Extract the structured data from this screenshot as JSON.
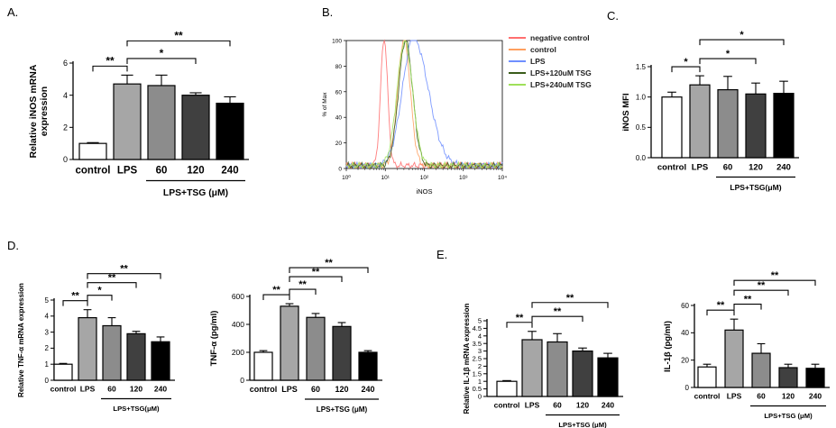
{
  "panel_labels": [
    "A.",
    "B.",
    "C.",
    "D.",
    "E."
  ],
  "colors": {
    "control": "#ffffff",
    "LPS": "#a6a6a6",
    "60": "#8c8c8c",
    "120": "#404040",
    "240": "#000000",
    "negative_control": "#ff6f6f",
    "flow_control": "#ff9f5f",
    "flow_LPS": "#6f8fff",
    "flow_120": "#3a5c1a",
    "flow_240": "#9fe05a"
  },
  "chart_data": [
    {
      "id": "A",
      "type": "bar",
      "ylabel": "Relative iNOS mRNA\nexpression",
      "ylim": [
        0,
        6
      ],
      "yticks": [
        0,
        2,
        4,
        6
      ],
      "categories": [
        "control",
        "LPS",
        "60",
        "120",
        "240"
      ],
      "values": [
        1.0,
        4.7,
        4.6,
        4.0,
        3.5
      ],
      "errors": [
        0.05,
        0.55,
        0.65,
        0.15,
        0.4
      ],
      "group_label": "LPS+TSG (μM)",
      "brackets": [
        {
          "from": 0,
          "to": 1,
          "label": "**"
        },
        {
          "from": 1,
          "to": 3,
          "label": "*"
        },
        {
          "from": 1,
          "to": 4,
          "label": "**"
        }
      ]
    },
    {
      "id": "B",
      "type": "line",
      "xlabel": "iNOS",
      "ylabel": "% of Max",
      "xscale": "log",
      "xlim": [
        1,
        10000
      ],
      "ylim": [
        0,
        100
      ],
      "yticks": [
        0,
        20,
        40,
        60,
        80,
        100
      ],
      "xticks": [
        "10⁰",
        "10¹",
        "10²",
        "10³",
        "10⁴"
      ],
      "series": [
        {
          "name": "negative control",
          "color_key": "negative_control",
          "center_log": 0.97,
          "sigma": 0.09,
          "peak": 100
        },
        {
          "name": "control",
          "color_key": "flow_control",
          "center_log": 1.48,
          "sigma": 0.16,
          "peak": 99
        },
        {
          "name": "LPS",
          "color_key": "flow_LPS",
          "center_log": 1.72,
          "sigma": 0.28,
          "peak": 100
        },
        {
          "name": "LPS+120uM TSG",
          "color_key": "flow_120",
          "center_log": 1.52,
          "sigma": 0.18,
          "peak": 98
        },
        {
          "name": "LPS+240uM TSG",
          "color_key": "flow_240",
          "center_log": 1.5,
          "sigma": 0.2,
          "peak": 97
        }
      ]
    },
    {
      "id": "C",
      "type": "bar",
      "ylabel": "iNOS MFI",
      "ylim": [
        0,
        1.5
      ],
      "yticks": [
        0.0,
        0.5,
        1.0,
        1.5
      ],
      "ytick_labels": [
        "0.0",
        "0.5",
        "1.0",
        "1.5"
      ],
      "categories": [
        "control",
        "LPS",
        "60",
        "120",
        "240"
      ],
      "values": [
        1.0,
        1.2,
        1.12,
        1.05,
        1.06
      ],
      "errors": [
        0.08,
        0.15,
        0.22,
        0.18,
        0.2
      ],
      "group_label": "LPS+TSG(μM)",
      "brackets": [
        {
          "from": 0,
          "to": 1,
          "label": "*"
        },
        {
          "from": 1,
          "to": 3,
          "label": "*"
        },
        {
          "from": 1,
          "to": 4,
          "label": "*"
        }
      ]
    },
    {
      "id": "D1",
      "type": "bar",
      "ylabel": "Relative TNF-α mRNA expression",
      "ylim": [
        0,
        5
      ],
      "yticks": [
        0,
        1,
        2,
        3,
        4,
        5
      ],
      "categories": [
        "control",
        "LPS",
        "60",
        "120",
        "240"
      ],
      "values": [
        1.0,
        3.9,
        3.4,
        2.9,
        2.4
      ],
      "errors": [
        0.05,
        0.5,
        0.5,
        0.15,
        0.3
      ],
      "group_label": "LPS+TSG(μM)",
      "brackets": [
        {
          "from": 0,
          "to": 1,
          "label": "**"
        },
        {
          "from": 1,
          "to": 2,
          "label": "*"
        },
        {
          "from": 1,
          "to": 3,
          "label": "**"
        },
        {
          "from": 1,
          "to": 4,
          "label": "**"
        }
      ]
    },
    {
      "id": "D2",
      "type": "bar",
      "ylabel": "TNF-α (pg/ml)",
      "ylim": [
        0,
        600
      ],
      "yticks": [
        0,
        200,
        400,
        600
      ],
      "categories": [
        "control",
        "LPS",
        "60",
        "120",
        "240"
      ],
      "values": [
        200,
        530,
        450,
        385,
        200
      ],
      "errors": [
        12,
        18,
        28,
        28,
        12
      ],
      "group_label": "LPS+TSG (μM)",
      "brackets": [
        {
          "from": 0,
          "to": 1,
          "label": "**"
        },
        {
          "from": 1,
          "to": 2,
          "label": "**"
        },
        {
          "from": 1,
          "to": 3,
          "label": "**"
        },
        {
          "from": 1,
          "to": 4,
          "label": "**"
        }
      ]
    },
    {
      "id": "E1",
      "type": "bar",
      "ylabel": "Relative IL-1β mRNA expression",
      "ylim": [
        0,
        5
      ],
      "yticks": [
        0,
        0.5,
        1,
        1.5,
        2,
        2.5,
        3,
        3.5,
        4,
        4.5,
        5
      ],
      "ytick_labels": [
        "0",
        "0.5",
        "1",
        "1.5",
        "2",
        "2.5",
        "3",
        "3.5",
        "4",
        "4.5",
        "5"
      ],
      "categories": [
        "control",
        "LPS",
        "60",
        "120",
        "240"
      ],
      "values": [
        1.0,
        3.75,
        3.6,
        3.0,
        2.55
      ],
      "errors": [
        0.05,
        0.55,
        0.55,
        0.2,
        0.3
      ],
      "group_label": "LPS+TSG (μM)",
      "brackets": [
        {
          "from": 0,
          "to": 1,
          "label": "**"
        },
        {
          "from": 1,
          "to": 3,
          "label": "**"
        },
        {
          "from": 1,
          "to": 4,
          "label": "**"
        }
      ]
    },
    {
      "id": "E2",
      "type": "bar",
      "ylabel": "IL-1β (pg/ml)",
      "ylim": [
        0,
        60
      ],
      "yticks": [
        0,
        20,
        40,
        60
      ],
      "categories": [
        "control",
        "LPS",
        "60",
        "120",
        "240"
      ],
      "values": [
        15,
        42,
        25,
        14.5,
        14
      ],
      "errors": [
        2,
        8,
        7,
        2.5,
        3
      ],
      "group_label": "LPS+TSG (μM)",
      "brackets": [
        {
          "from": 0,
          "to": 1,
          "label": "**"
        },
        {
          "from": 1,
          "to": 2,
          "label": "**"
        },
        {
          "from": 1,
          "to": 3,
          "label": "**"
        },
        {
          "from": 1,
          "to": 4,
          "label": "**"
        }
      ]
    }
  ]
}
